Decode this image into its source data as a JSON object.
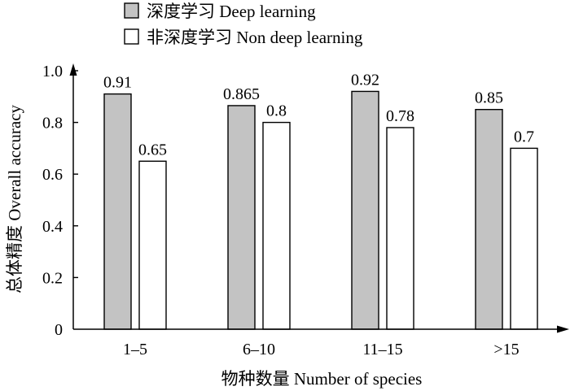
{
  "chart_data": {
    "type": "bar",
    "categories": [
      "1–5",
      "6–10",
      "11–15",
      ">15"
    ],
    "series": [
      {
        "name": "深度学习 Deep learning",
        "values": [
          0.91,
          0.865,
          0.92,
          0.85
        ],
        "color": "#c3c3c3"
      },
      {
        "name": "非深度学习 Non deep learning",
        "values": [
          0.65,
          0.8,
          0.78,
          0.7
        ],
        "color": "#ffffff"
      }
    ],
    "xlabel": "物种数量 Number of species",
    "ylabel": "总体精度 Overall accuracy",
    "yticks": [
      0,
      0.2,
      0.4,
      0.6,
      0.8,
      1.0
    ],
    "ytick_labels": [
      "0",
      "0.2",
      "0.4",
      "0.6",
      "0.8",
      "1.0"
    ],
    "ylim": [
      0,
      1.0
    ],
    "grid": false,
    "legend": "top"
  }
}
